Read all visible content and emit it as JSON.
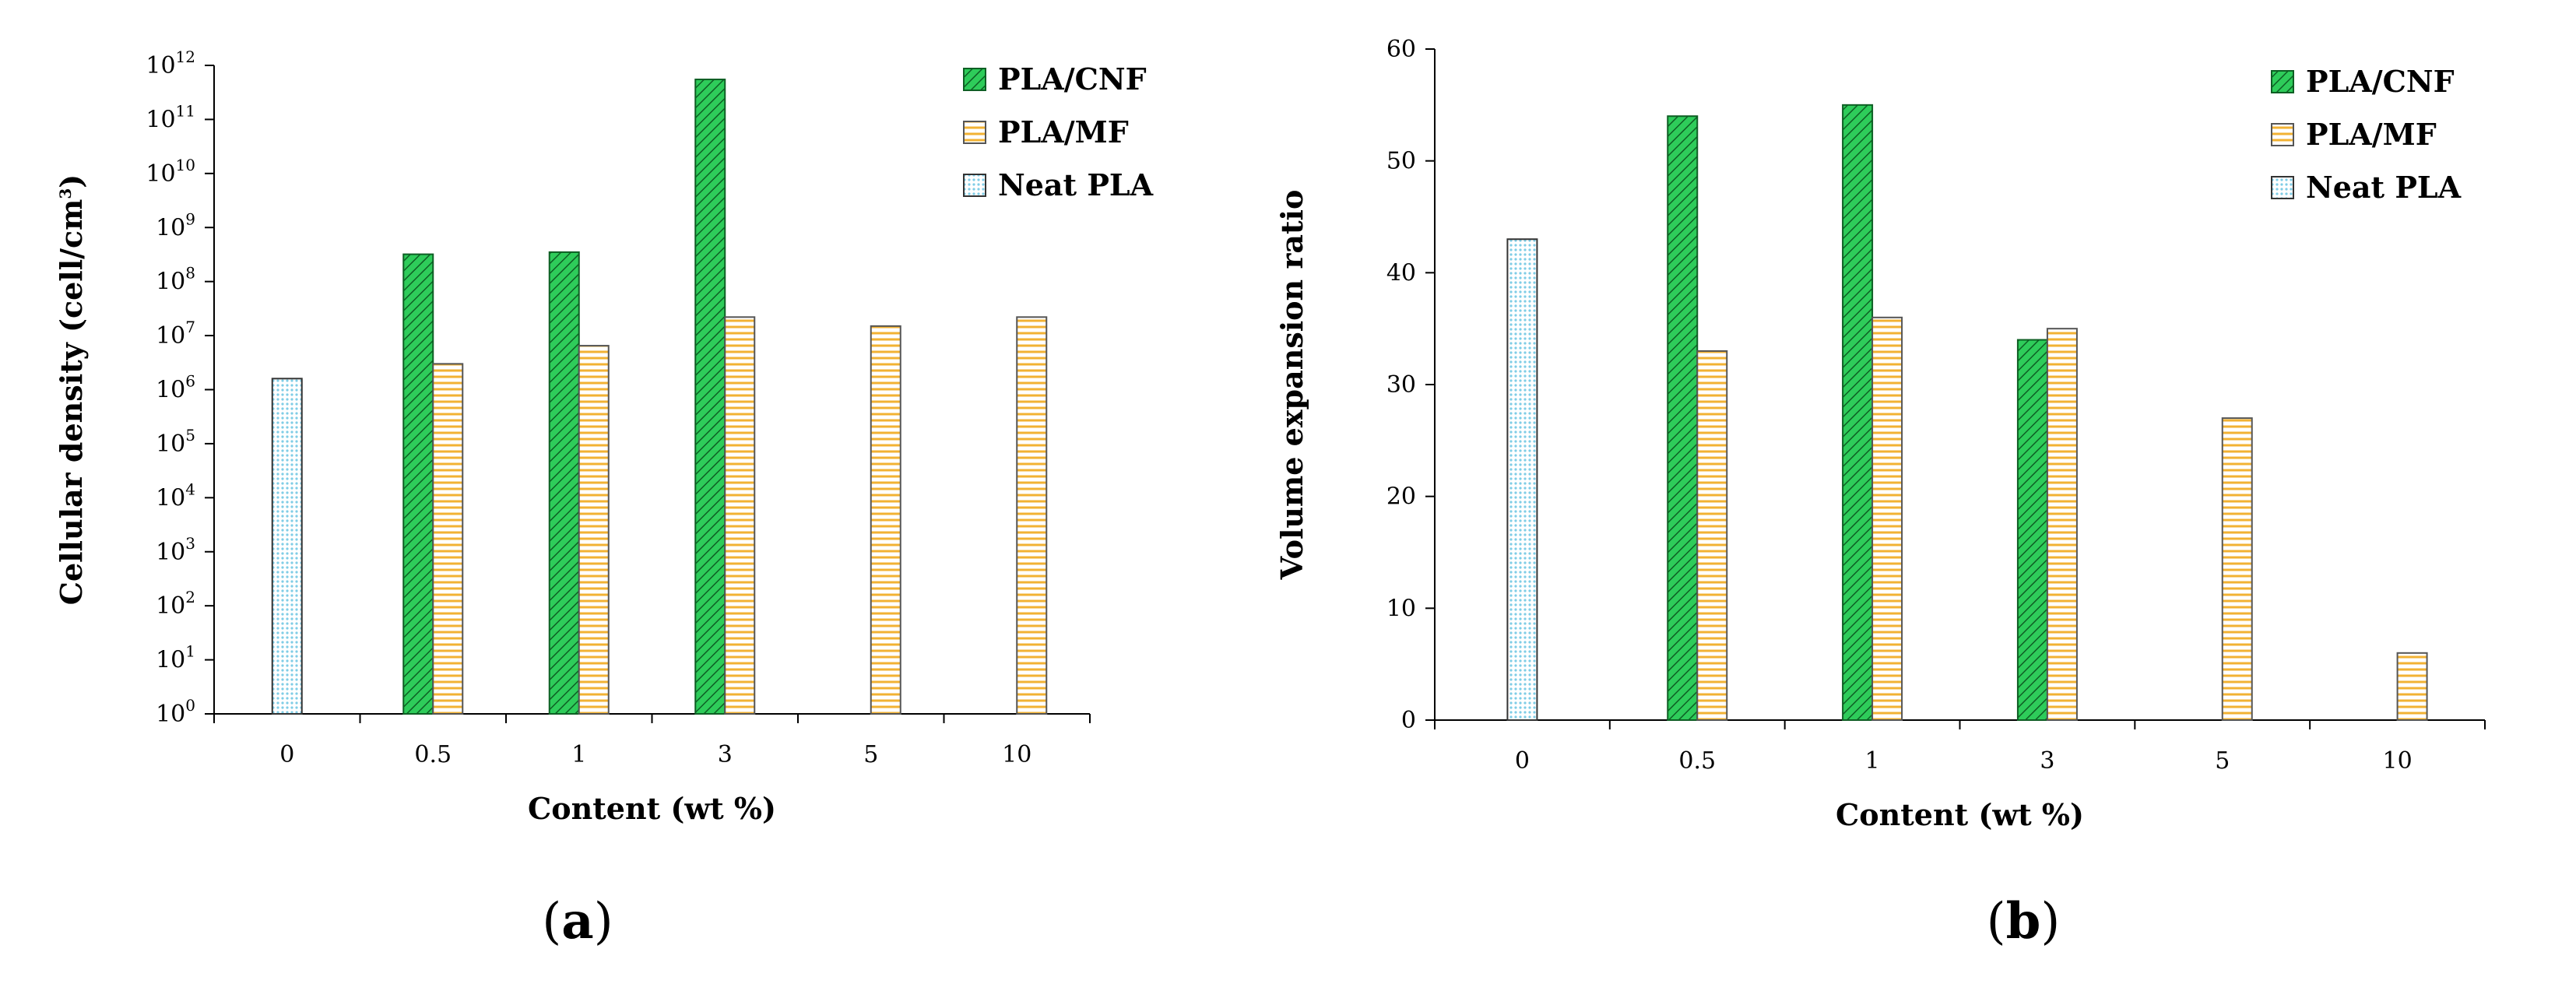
{
  "colors": {
    "cnf": "#2ECC5A",
    "mf": "#FFD878",
    "neat": "#CDEFF7"
  },
  "chart_data": [
    {
      "panel": "a",
      "panel_label_open": "(",
      "panel_label_letter": "a",
      "panel_label_close": ")",
      "type": "bar",
      "scale": "log",
      "categories": [
        "0",
        "0.5",
        "1",
        "3",
        "5",
        "10"
      ],
      "xlabel": "Content (wt %)",
      "ylabel": "Cellular density (cell/cm",
      "ylabel_sup": "3",
      "ylabel_close": ")",
      "ylim_exponent": [
        0,
        12
      ],
      "yticks": [
        {
          "base": "10",
          "exp": "0",
          "value": 1
        },
        {
          "base": "10",
          "exp": "1",
          "value": 10
        },
        {
          "base": "10",
          "exp": "2",
          "value": 100
        },
        {
          "base": "10",
          "exp": "3",
          "value": 1000
        },
        {
          "base": "10",
          "exp": "4",
          "value": 10000
        },
        {
          "base": "10",
          "exp": "5",
          "value": 100000
        },
        {
          "base": "10",
          "exp": "6",
          "value": 1000000
        },
        {
          "base": "10",
          "exp": "7",
          "value": 10000000
        },
        {
          "base": "10",
          "exp": "8",
          "value": 100000000
        },
        {
          "base": "10",
          "exp": "9",
          "value": 1000000000
        },
        {
          "base": "10",
          "exp": "10",
          "value": 10000000000
        },
        {
          "base": "10",
          "exp": "11",
          "value": 100000000000
        },
        {
          "base": "10",
          "exp": "12",
          "value": 1000000000000
        }
      ],
      "series": [
        {
          "name": "PLA/CNF",
          "key": "cnf",
          "pattern": "diag",
          "values": [
            null,
            320000000.0,
            350000000.0,
            550000000000.0,
            null,
            null
          ]
        },
        {
          "name": "PLA/MF",
          "key": "mf",
          "pattern": "horiz",
          "values": [
            null,
            3000000.0,
            6500000.0,
            22000000.0,
            15000000.0,
            22000000.0
          ]
        },
        {
          "name": "Neat PLA",
          "key": "neat",
          "pattern": "dots",
          "values": [
            1600000.0,
            null,
            null,
            null,
            null,
            null
          ]
        }
      ],
      "legend": [
        "PLA/CNF",
        "PLA/MF",
        "Neat PLA"
      ],
      "legend_position": "top-right"
    },
    {
      "panel": "b",
      "panel_label_open": "(",
      "panel_label_letter": "b",
      "panel_label_close": ")",
      "type": "bar",
      "scale": "linear",
      "categories": [
        "0",
        "0.5",
        "1",
        "3",
        "5",
        "10"
      ],
      "xlabel": "Content (wt %)",
      "ylabel": "Volume expansion ratio",
      "ylim": [
        0,
        60
      ],
      "yticks": [
        0,
        10,
        20,
        30,
        40,
        50,
        60
      ],
      "series": [
        {
          "name": "PLA/CNF",
          "key": "cnf",
          "pattern": "diag",
          "values": [
            null,
            54,
            55,
            34,
            null,
            null
          ]
        },
        {
          "name": "PLA/MF",
          "key": "mf",
          "pattern": "horiz",
          "values": [
            null,
            33,
            36,
            35,
            27,
            6
          ]
        },
        {
          "name": "Neat PLA",
          "key": "neat",
          "pattern": "dots",
          "values": [
            43,
            null,
            null,
            null,
            null,
            null
          ]
        }
      ],
      "legend": [
        "PLA/CNF",
        "PLA/MF",
        "Neat PLA"
      ],
      "legend_position": "top-right"
    }
  ]
}
